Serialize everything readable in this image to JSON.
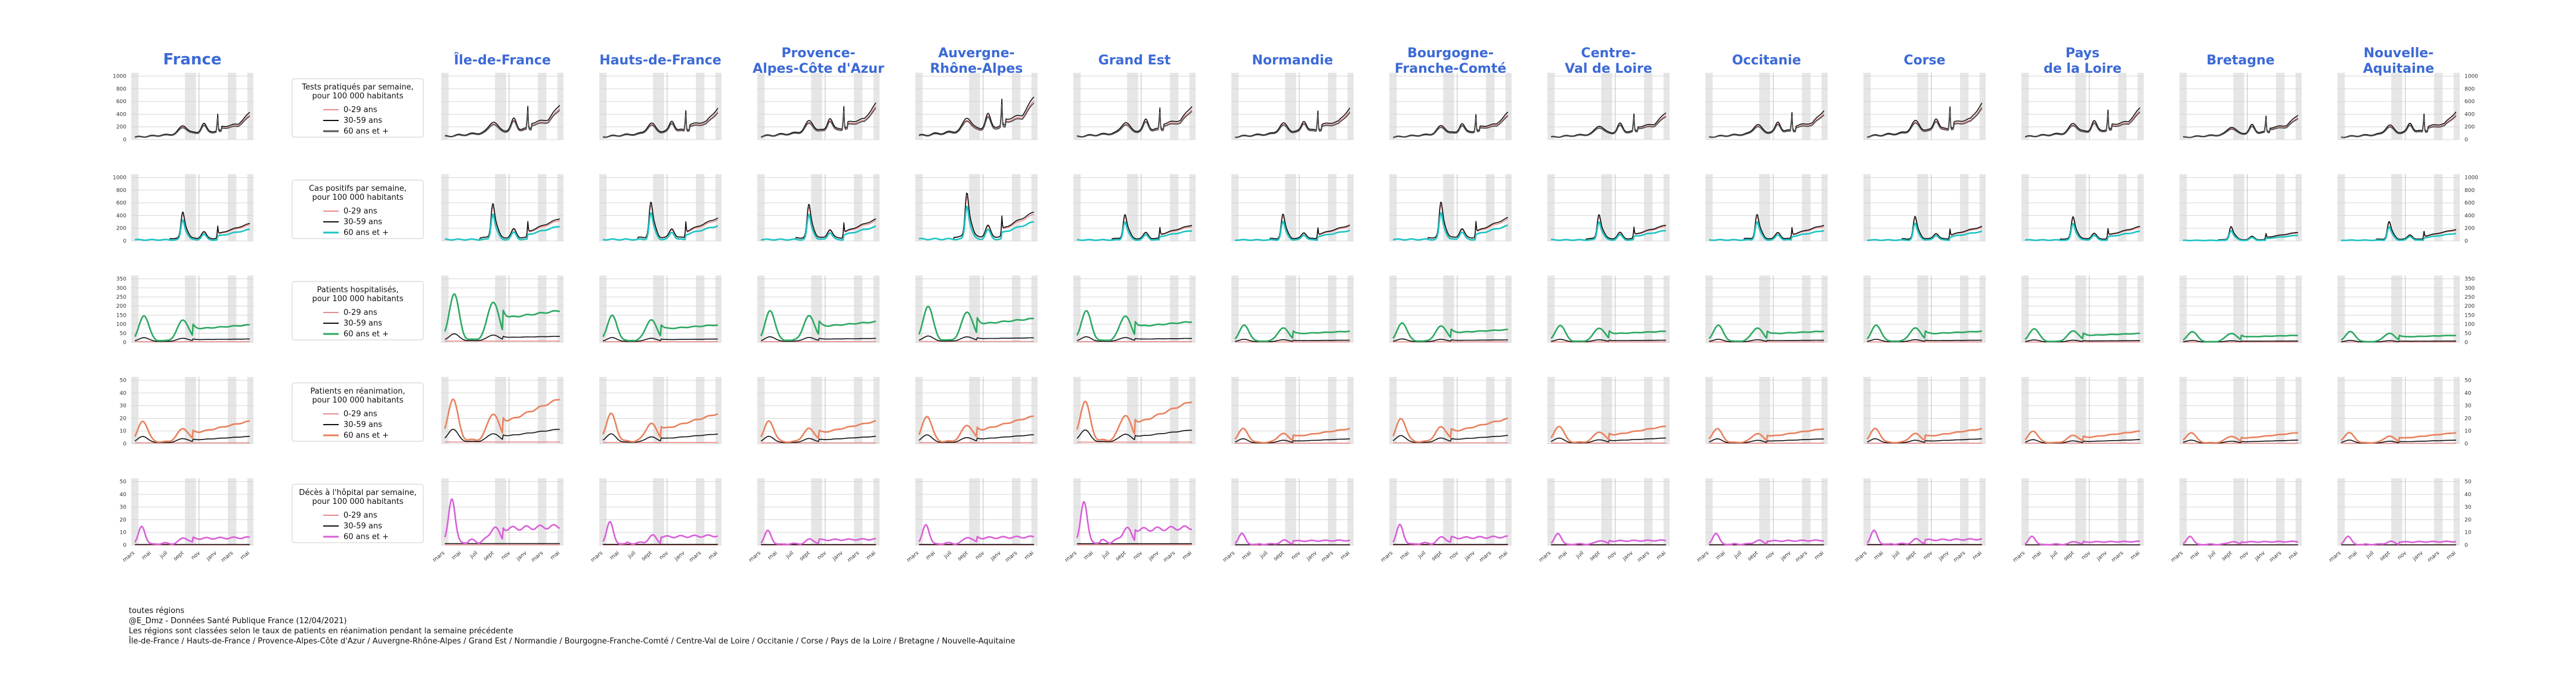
{
  "chart_data": {
    "type": "line",
    "layout": "small-multiples",
    "x_ticks": [
      "mars",
      "mai",
      "juil",
      "sept",
      "nov",
      "janv",
      "mars",
      "mai"
    ],
    "legend_entries": [
      "0-29 ans",
      "30-59 ans",
      "60 ans et +"
    ],
    "columns": [
      {
        "title": "France",
        "scale": [
          0.6,
          0.6,
          0.55,
          0.45,
          0.32
        ]
      },
      {
        "title": "Île-de-France",
        "scale": [
          0.78,
          0.78,
          1.0,
          0.9,
          0.8
        ]
      },
      {
        "title": "Hauts-de-France",
        "scale": [
          0.7,
          0.8,
          0.55,
          0.6,
          0.4
        ]
      },
      {
        "title": "Provence-\nAlpes-Côte d'Azur",
        "scale": [
          0.8,
          0.75,
          0.65,
          0.45,
          0.25
        ]
      },
      {
        "title": "Auvergne-\nRhône-Alpes",
        "scale": [
          0.95,
          1.0,
          0.75,
          0.55,
          0.35
        ]
      },
      {
        "title": "Grand Est",
        "scale": [
          0.75,
          0.55,
          0.65,
          0.85,
          0.75
        ]
      },
      {
        "title": "Normandie",
        "scale": [
          0.7,
          0.55,
          0.35,
          0.3,
          0.2
        ]
      },
      {
        "title": "Bourgogne-\nFranche-Comté",
        "scale": [
          0.6,
          0.8,
          0.4,
          0.5,
          0.35
        ]
      },
      {
        "title": "Centre-\nVal de Loire",
        "scale": [
          0.6,
          0.55,
          0.35,
          0.35,
          0.2
        ]
      },
      {
        "title": "Occitanie",
        "scale": [
          0.65,
          0.55,
          0.35,
          0.3,
          0.2
        ]
      },
      {
        "title": "Corse",
        "scale": [
          0.8,
          0.5,
          0.35,
          0.3,
          0.25
        ]
      },
      {
        "title": "Pays\nde la Loire",
        "scale": [
          0.7,
          0.5,
          0.28,
          0.25,
          0.15
        ]
      },
      {
        "title": "Bretagne",
        "scale": [
          0.55,
          0.3,
          0.22,
          0.22,
          0.15
        ]
      },
      {
        "title": "Nouvelle-\nAquitaine",
        "scale": [
          0.62,
          0.4,
          0.22,
          0.22,
          0.15
        ]
      }
    ],
    "rows": [
      {
        "legend_title": "Tests pratiqués par semaine,\npour 100 000 habitants",
        "third_color": "#555555",
        "y_ticks": [
          "0",
          "200",
          "400",
          "600",
          "800",
          "1000"
        ],
        "ymax": 1000
      },
      {
        "legend_title": "Cas positifs par semaine,\npour 100 000 habitants",
        "third_color": "#1fc4c4",
        "y_ticks": [
          "0",
          "200",
          "400",
          "600",
          "800",
          "1000"
        ],
        "ymax": 1000
      },
      {
        "legend_title": "Patients hospitalisés,\npour 100 000 habitants",
        "third_color": "#2ca862",
        "y_ticks": [
          "0",
          "50",
          "100",
          "150",
          "200",
          "250",
          "300",
          "350"
        ],
        "ymax": 350
      },
      {
        "legend_title": "Patients en réanimation,\npour 100 000 habitants",
        "third_color": "#e8825e",
        "y_ticks": [
          "0",
          "10",
          "20",
          "30",
          "40",
          "50"
        ],
        "ymax": 50
      },
      {
        "legend_title": "Décès à l'hôpital par semaine,\npour 100 000 habitants",
        "third_color": "#d95fd9",
        "y_ticks": [
          "0",
          "10",
          "20",
          "30",
          "40",
          "50"
        ],
        "ymax": 50
      }
    ],
    "series_colors": {
      "0-29 ans": "#e88c8c",
      "30-59 ans": "#111111"
    }
  },
  "footer": {
    "line1": "toutes régions",
    "line2": "@E_Dmz - Données Santé Publique France (12/04/2021)",
    "line3": "Les régions sont classées selon le taux de patients en réanimation pendant la semaine précédente",
    "line4": "Île-de-France / Hauts-de-France / Provence-Alpes-Côte d'Azur / Auvergne-Rhône-Alpes / Grand Est / Normandie / Bourgogne-Franche-Comté / Centre-Val de Loire / Occitanie / Corse / Pays de la Loire / Bretagne / Nouvelle-Aquitaine"
  }
}
